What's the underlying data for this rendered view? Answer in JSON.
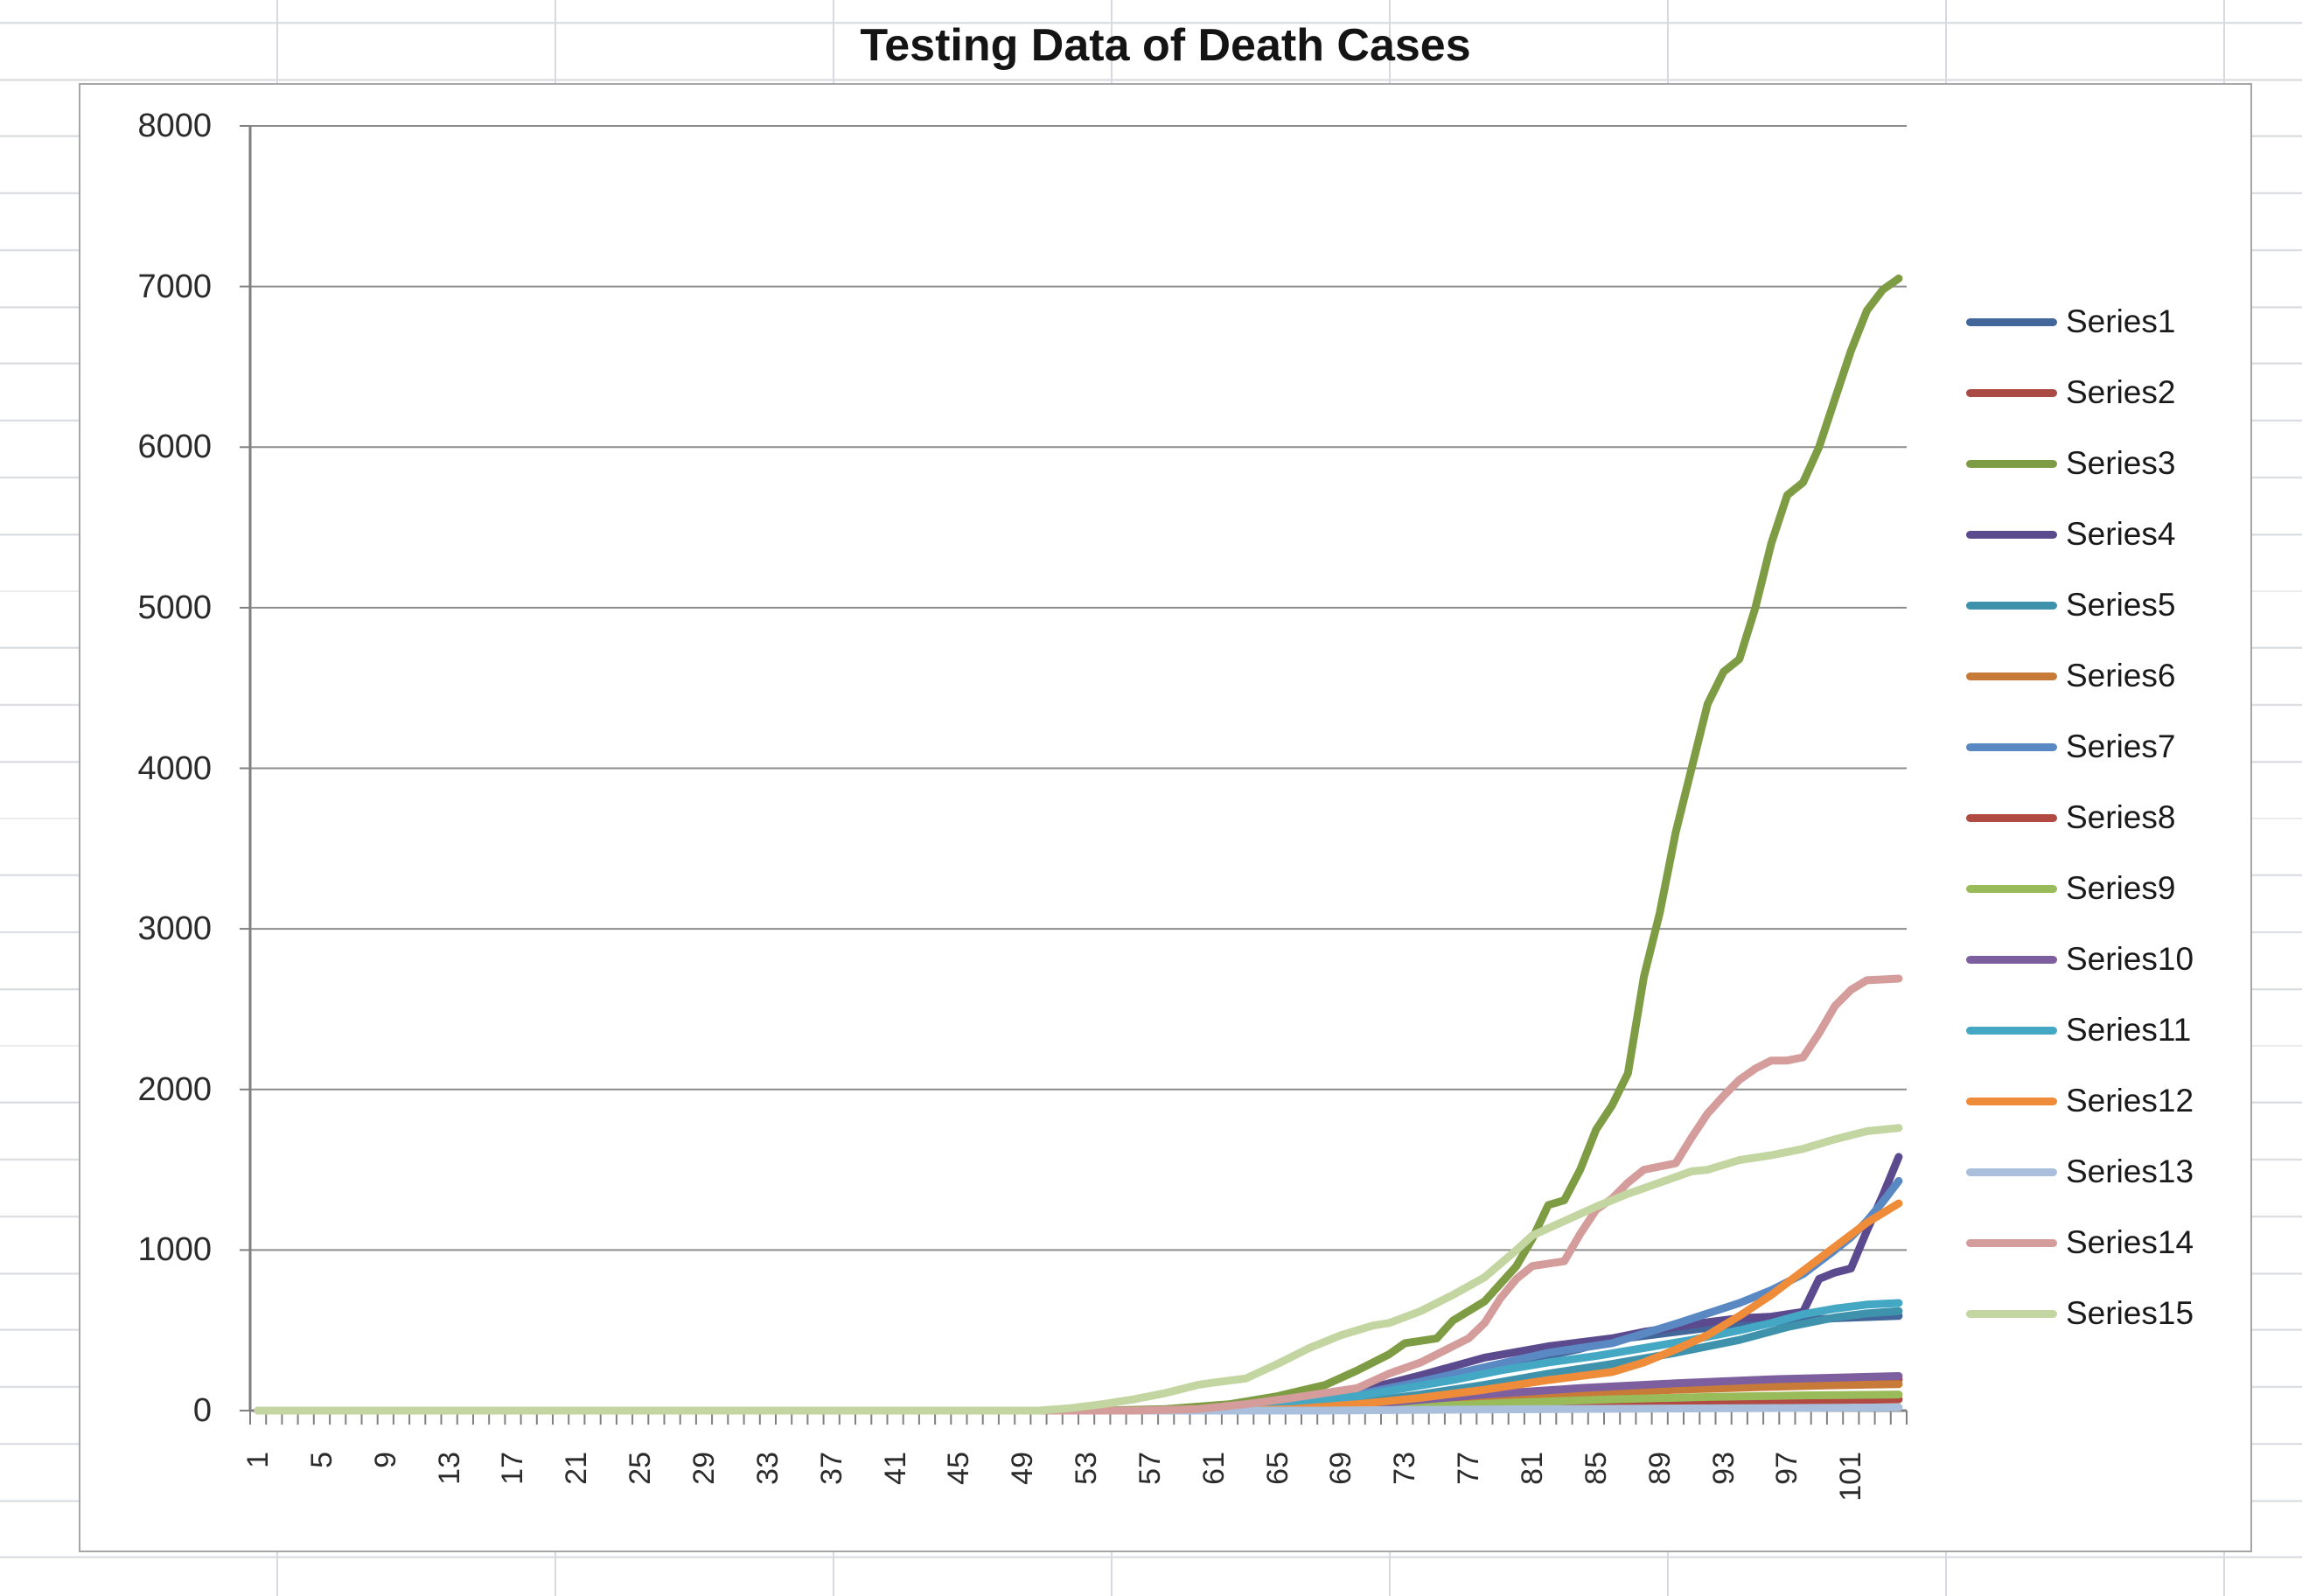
{
  "palette": {
    "sheet_line": "#d7dbe0",
    "chart_border": "#a6a6a6",
    "grid_color": "#8c8c8c",
    "axis_color": "#7f7f7f",
    "tick_color": "#808080",
    "label_color": "#2b2b2b",
    "title_color": "#141414"
  },
  "chart_data": {
    "type": "line",
    "title": "Testing Data of Death Cases",
    "xlabel": "",
    "ylabel": "",
    "x_categories_count": 104,
    "x_tick_labels": [
      1,
      5,
      9,
      13,
      17,
      21,
      25,
      29,
      33,
      37,
      41,
      45,
      49,
      53,
      57,
      61,
      65,
      69,
      73,
      77,
      81,
      85,
      89,
      93,
      97,
      101
    ],
    "ylim": [
      0,
      8000
    ],
    "y_ticks": [
      0,
      1000,
      2000,
      3000,
      4000,
      5000,
      6000,
      7000,
      8000
    ],
    "grid": true,
    "legend_position": "right",
    "series": [
      {
        "name": "Series1",
        "color": "#44679b",
        "points": [
          [
            1,
            0
          ],
          [
            60,
            0
          ],
          [
            64,
            15
          ],
          [
            68,
            60
          ],
          [
            72,
            130
          ],
          [
            76,
            210
          ],
          [
            80,
            300
          ],
          [
            84,
            385
          ],
          [
            86,
            440
          ],
          [
            88,
            465
          ],
          [
            90,
            490
          ],
          [
            92,
            515
          ],
          [
            96,
            550
          ],
          [
            100,
            575
          ],
          [
            104,
            590
          ]
        ]
      },
      {
        "name": "Series2",
        "color": "#a94b44",
        "points": [
          [
            1,
            0
          ],
          [
            62,
            0
          ],
          [
            66,
            25
          ],
          [
            70,
            50
          ],
          [
            76,
            90
          ],
          [
            82,
            125
          ],
          [
            88,
            155
          ],
          [
            94,
            175
          ],
          [
            100,
            185
          ],
          [
            104,
            195
          ]
        ]
      },
      {
        "name": "Series3",
        "color": "#7e9c43",
        "points": [
          [
            1,
            0
          ],
          [
            54,
            0
          ],
          [
            58,
            10
          ],
          [
            62,
            40
          ],
          [
            65,
            90
          ],
          [
            68,
            160
          ],
          [
            70,
            250
          ],
          [
            72,
            350
          ],
          [
            73,
            420
          ],
          [
            75,
            450
          ],
          [
            76,
            560
          ],
          [
            78,
            680
          ],
          [
            80,
            900
          ],
          [
            81,
            1070
          ],
          [
            82,
            1280
          ],
          [
            83,
            1310
          ],
          [
            84,
            1500
          ],
          [
            85,
            1750
          ],
          [
            86,
            1900
          ],
          [
            87,
            2100
          ],
          [
            88,
            2700
          ],
          [
            89,
            3100
          ],
          [
            90,
            3600
          ],
          [
            91,
            4000
          ],
          [
            92,
            4400
          ],
          [
            93,
            4600
          ],
          [
            94,
            4680
          ],
          [
            95,
            5000
          ],
          [
            96,
            5400
          ],
          [
            97,
            5700
          ],
          [
            98,
            5780
          ],
          [
            99,
            6000
          ],
          [
            100,
            6300
          ],
          [
            101,
            6600
          ],
          [
            102,
            6850
          ],
          [
            103,
            6980
          ],
          [
            104,
            7050
          ]
        ]
      },
      {
        "name": "Series4",
        "color": "#5b4a8e",
        "points": [
          [
            1,
            0
          ],
          [
            58,
            0
          ],
          [
            62,
            10
          ],
          [
            66,
            50
          ],
          [
            70,
            120
          ],
          [
            74,
            220
          ],
          [
            78,
            330
          ],
          [
            82,
            400
          ],
          [
            86,
            450
          ],
          [
            88,
            490
          ],
          [
            90,
            520
          ],
          [
            92,
            550
          ],
          [
            94,
            575
          ],
          [
            96,
            585
          ],
          [
            98,
            615
          ],
          [
            99,
            820
          ],
          [
            100,
            860
          ],
          [
            101,
            885
          ],
          [
            102,
            1120
          ],
          [
            103,
            1340
          ],
          [
            104,
            1580
          ]
        ]
      },
      {
        "name": "Series5",
        "color": "#3e92ac",
        "points": [
          [
            1,
            0
          ],
          [
            61,
            0
          ],
          [
            65,
            10
          ],
          [
            70,
            50
          ],
          [
            74,
            100
          ],
          [
            78,
            160
          ],
          [
            82,
            230
          ],
          [
            86,
            290
          ],
          [
            90,
            360
          ],
          [
            94,
            440
          ],
          [
            97,
            520
          ],
          [
            100,
            580
          ],
          [
            102,
            605
          ],
          [
            104,
            620
          ]
        ]
      },
      {
        "name": "Series6",
        "color": "#c87b38",
        "points": [
          [
            1,
            0
          ],
          [
            62,
            0
          ],
          [
            66,
            10
          ],
          [
            72,
            40
          ],
          [
            78,
            75
          ],
          [
            84,
            105
          ],
          [
            90,
            130
          ],
          [
            96,
            148
          ],
          [
            100,
            158
          ],
          [
            104,
            165
          ]
        ]
      },
      {
        "name": "Series7",
        "color": "#5a88c2",
        "points": [
          [
            1,
            0
          ],
          [
            59,
            0
          ],
          [
            63,
            15
          ],
          [
            66,
            40
          ],
          [
            70,
            100
          ],
          [
            74,
            180
          ],
          [
            78,
            270
          ],
          [
            82,
            360
          ],
          [
            86,
            420
          ],
          [
            90,
            540
          ],
          [
            94,
            670
          ],
          [
            96,
            750
          ],
          [
            98,
            850
          ],
          [
            100,
            1000
          ],
          [
            101,
            1080
          ],
          [
            102,
            1180
          ],
          [
            103,
            1300
          ],
          [
            104,
            1430
          ]
        ]
      },
      {
        "name": "Series8",
        "color": "#b04a42",
        "points": [
          [
            1,
            0
          ],
          [
            66,
            0
          ],
          [
            70,
            5
          ],
          [
            76,
            20
          ],
          [
            82,
            35
          ],
          [
            88,
            48
          ],
          [
            94,
            58
          ],
          [
            100,
            65
          ],
          [
            104,
            70
          ]
        ]
      },
      {
        "name": "Series9",
        "color": "#9abb59",
        "points": [
          [
            1,
            0
          ],
          [
            64,
            0
          ],
          [
            68,
            5
          ],
          [
            74,
            25
          ],
          [
            80,
            50
          ],
          [
            86,
            70
          ],
          [
            92,
            85
          ],
          [
            98,
            95
          ],
          [
            104,
            100
          ]
        ]
      },
      {
        "name": "Series10",
        "color": "#7d5fa0",
        "points": [
          [
            1,
            0
          ],
          [
            62,
            0
          ],
          [
            66,
            10
          ],
          [
            72,
            50
          ],
          [
            78,
            100
          ],
          [
            84,
            140
          ],
          [
            90,
            170
          ],
          [
            96,
            195
          ],
          [
            100,
            205
          ],
          [
            104,
            215
          ]
        ]
      },
      {
        "name": "Series11",
        "color": "#44a8c4",
        "points": [
          [
            1,
            0
          ],
          [
            59,
            0
          ],
          [
            63,
            15
          ],
          [
            67,
            50
          ],
          [
            70,
            90
          ],
          [
            73,
            140
          ],
          [
            76,
            190
          ],
          [
            79,
            250
          ],
          [
            82,
            300
          ],
          [
            85,
            340
          ],
          [
            88,
            390
          ],
          [
            91,
            440
          ],
          [
            94,
            500
          ],
          [
            96,
            545
          ],
          [
            98,
            600
          ],
          [
            100,
            635
          ],
          [
            102,
            660
          ],
          [
            104,
            670
          ]
        ]
      },
      {
        "name": "Series12",
        "color": "#ef8c3a",
        "points": [
          [
            1,
            0
          ],
          [
            62,
            0
          ],
          [
            66,
            10
          ],
          [
            70,
            40
          ],
          [
            74,
            80
          ],
          [
            78,
            130
          ],
          [
            82,
            190
          ],
          [
            86,
            240
          ],
          [
            88,
            300
          ],
          [
            90,
            380
          ],
          [
            92,
            470
          ],
          [
            94,
            590
          ],
          [
            96,
            720
          ],
          [
            98,
            870
          ],
          [
            100,
            1020
          ],
          [
            102,
            1170
          ],
          [
            103,
            1230
          ],
          [
            104,
            1290
          ]
        ]
      },
      {
        "name": "Series13",
        "color": "#a9bfdb",
        "points": [
          [
            1,
            0
          ],
          [
            68,
            0
          ],
          [
            72,
            3
          ],
          [
            80,
            8
          ],
          [
            88,
            12
          ],
          [
            96,
            16
          ],
          [
            104,
            20
          ]
        ]
      },
      {
        "name": "Series14",
        "color": "#d49c9a",
        "points": [
          [
            1,
            0
          ],
          [
            56,
            0
          ],
          [
            60,
            10
          ],
          [
            63,
            40
          ],
          [
            66,
            80
          ],
          [
            68,
            110
          ],
          [
            70,
            140
          ],
          [
            72,
            230
          ],
          [
            74,
            300
          ],
          [
            76,
            400
          ],
          [
            77,
            450
          ],
          [
            78,
            545
          ],
          [
            79,
            700
          ],
          [
            80,
            820
          ],
          [
            81,
            900
          ],
          [
            83,
            930
          ],
          [
            84,
            1100
          ],
          [
            85,
            1250
          ],
          [
            86,
            1320
          ],
          [
            87,
            1420
          ],
          [
            88,
            1500
          ],
          [
            89,
            1520
          ],
          [
            90,
            1540
          ],
          [
            91,
            1700
          ],
          [
            92,
            1850
          ],
          [
            93,
            1960
          ],
          [
            94,
            2060
          ],
          [
            95,
            2130
          ],
          [
            96,
            2180
          ],
          [
            97,
            2180
          ],
          [
            98,
            2200
          ],
          [
            99,
            2350
          ],
          [
            100,
            2520
          ],
          [
            101,
            2620
          ],
          [
            102,
            2680
          ],
          [
            104,
            2690
          ]
        ]
      },
      {
        "name": "Series15",
        "color": "#c3d5a0",
        "points": [
          [
            1,
            0
          ],
          [
            50,
            0
          ],
          [
            52,
            15
          ],
          [
            54,
            40
          ],
          [
            56,
            70
          ],
          [
            58,
            110
          ],
          [
            60,
            160
          ],
          [
            61,
            175
          ],
          [
            63,
            200
          ],
          [
            65,
            290
          ],
          [
            67,
            390
          ],
          [
            69,
            470
          ],
          [
            71,
            530
          ],
          [
            72,
            545
          ],
          [
            74,
            620
          ],
          [
            76,
            720
          ],
          [
            78,
            830
          ],
          [
            80,
            1000
          ],
          [
            81,
            1090
          ],
          [
            83,
            1180
          ],
          [
            85,
            1270
          ],
          [
            87,
            1350
          ],
          [
            89,
            1420
          ],
          [
            91,
            1490
          ],
          [
            92,
            1500
          ],
          [
            94,
            1560
          ],
          [
            96,
            1590
          ],
          [
            98,
            1630
          ],
          [
            100,
            1690
          ],
          [
            102,
            1740
          ],
          [
            104,
            1760
          ]
        ]
      }
    ]
  }
}
